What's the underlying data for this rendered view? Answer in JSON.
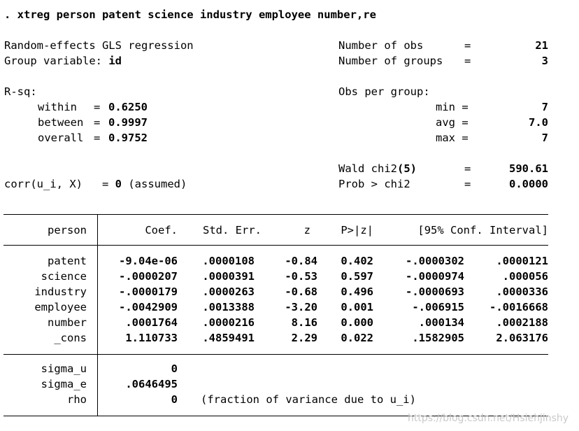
{
  "command": ". xtreg person patent science industry employee number,re",
  "header": {
    "model_title": "Random-effects GLS regression",
    "group_variable_label": "Group variable: ",
    "group_variable_value": "id",
    "nobs_label": "Number of obs",
    "nobs_value": "21",
    "ngroups_label": "Number of groups",
    "ngroups_value": "3",
    "equals": "=",
    "rsq_label": "R-sq:",
    "within_label": "within",
    "within_eq": "=",
    "within_value": "0.6250",
    "between_label": "between",
    "between_eq": "=",
    "between_value": "0.9997",
    "overall_label": "overall",
    "overall_eq": "=",
    "overall_value": "0.9752",
    "obs_per_group_label": "Obs per group:",
    "min_label": "min =",
    "min_value": "7",
    "avg_label": "avg =",
    "avg_value": "7.0",
    "max_label": "max =",
    "max_value": "7",
    "wald_label": "Wald chi2",
    "wald_df": "(5)",
    "wald_value": "590.61",
    "prob_label": "Prob > chi2",
    "prob_value": "0.0000",
    "corr_label": "corr(u_i, X)",
    "corr_eq": "= ",
    "corr_value": "0",
    "corr_note": " (assumed)"
  },
  "table": {
    "dep_var": "person",
    "col_coef": "Coef.",
    "col_se": "Std. Err.",
    "col_z": "z",
    "col_p": "P>|z|",
    "col_ci": "[95% Conf. Interval]",
    "rows": [
      {
        "name": "patent",
        "coef": "-9.04e-06",
        "se": ".0000108",
        "z": "-0.84",
        "p": "0.402",
        "lo": "-.0000302",
        "hi": ".0000121"
      },
      {
        "name": "science",
        "coef": "-.0000207",
        "se": ".0000391",
        "z": "-0.53",
        "p": "0.597",
        "lo": "-.0000974",
        "hi": ".000056"
      },
      {
        "name": "industry",
        "coef": "-.0000179",
        "se": ".0000263",
        "z": "-0.68",
        "p": "0.496",
        "lo": "-.0000693",
        "hi": ".0000336"
      },
      {
        "name": "employee",
        "coef": "-.0042909",
        "se": ".0013388",
        "z": "-3.20",
        "p": "0.001",
        "lo": "-.006915",
        "hi": "-.0016668"
      },
      {
        "name": "number",
        "coef": ".0001764",
        "se": ".0000216",
        "z": "8.16",
        "p": "0.000",
        "lo": ".000134",
        "hi": ".0002188"
      },
      {
        "name": "_cons",
        "coef": "1.110733",
        "se": ".4859491",
        "z": "2.29",
        "p": "0.022",
        "lo": ".1582905",
        "hi": "2.063176"
      }
    ],
    "sigma_u_label": "sigma_u",
    "sigma_u_value": "0",
    "sigma_e_label": "sigma_e",
    "sigma_e_value": ".0646495",
    "rho_label": "rho",
    "rho_value": "0",
    "rho_note": "(fraction of variance due to u_i)"
  },
  "watermark": "https://blog.csdn.net/Hsiehjinshy"
}
